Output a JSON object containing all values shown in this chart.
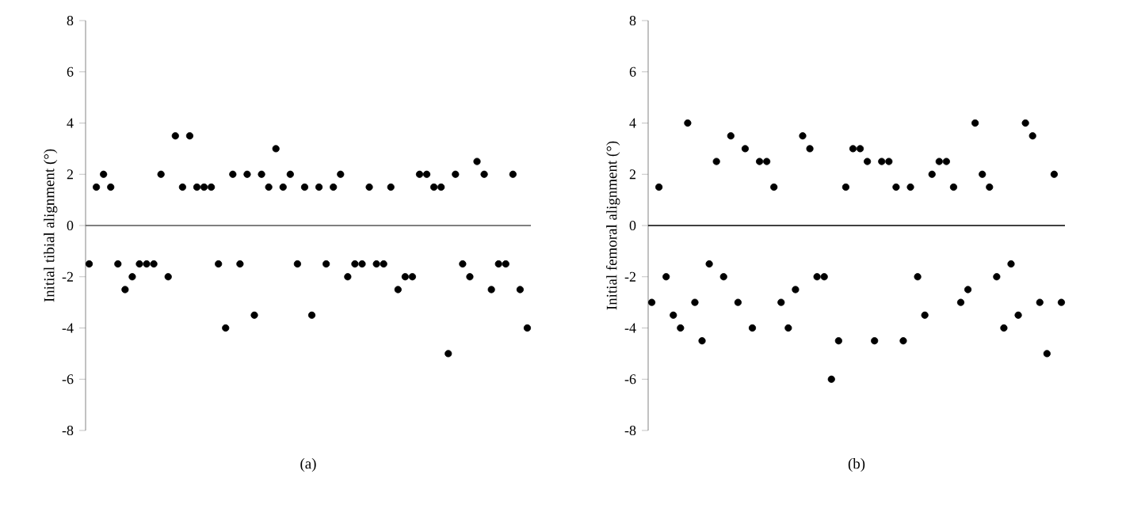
{
  "chart_data": [
    {
      "type": "scatter",
      "xlabel": "(a)",
      "ylabel": "Initial tibial alignment (°)",
      "tick_labels": "y",
      "categories": [
        null,
        null,
        null,
        null,
        null,
        null,
        null,
        null,
        null,
        null,
        null,
        null,
        null,
        null,
        null,
        null,
        null,
        null,
        null,
        null,
        null,
        null,
        null,
        null,
        null,
        null,
        null,
        null,
        null,
        null,
        null,
        null,
        null,
        null,
        null,
        null,
        null,
        null,
        null,
        null,
        null,
        null,
        null,
        null,
        null,
        null,
        null,
        null,
        null,
        null,
        null,
        null,
        null,
        null,
        null,
        null,
        null,
        null,
        null,
        null,
        null,
        null
      ],
      "series": [
        {
          "color": "#000000",
          "values": [
            -1.5,
            1.5,
            2,
            1.5,
            -1.5,
            -2.5,
            -2,
            -1.5,
            -1.5,
            -1.5,
            2,
            -2,
            3.5,
            1.5,
            3.5,
            1.5,
            1.5,
            1.5,
            -1.5,
            -4,
            2,
            -1.5,
            2,
            -3.5,
            2,
            1.5,
            3,
            1.5,
            2,
            -1.5,
            1.5,
            -3.5,
            1.5,
            -1.5,
            1.5,
            2,
            -2,
            -1.5,
            -1.5,
            1.5,
            -1.5,
            -1.5,
            1.5,
            -2.5,
            -2,
            -2,
            2,
            2,
            1.5,
            1.5,
            -5,
            2,
            -1.5,
            -2,
            2.5,
            2,
            -2.5,
            -1.5,
            -1.5,
            2,
            -2.5,
            -4
          ]
        }
      ],
      "ylim": [
        -8,
        8
      ],
      "yticks": [
        -8,
        -6,
        -4,
        -2,
        0,
        2,
        4,
        6,
        8
      ],
      "ref_lines": [
        {
          "axis": "y",
          "value": 0,
          "color": "#555555"
        }
      ]
    },
    {
      "type": "scatter",
      "xlabel": "(b)",
      "ylabel": "Initial femoral alignment (°)",
      "tick_labels": "y",
      "categories": [
        null,
        null,
        null,
        null,
        null,
        null,
        null,
        null,
        null,
        null,
        null,
        null,
        null,
        null,
        null,
        null,
        null,
        null,
        null,
        null,
        null,
        null,
        null,
        null,
        null,
        null,
        null,
        null,
        null,
        null,
        null,
        null,
        null,
        null,
        null,
        null,
        null,
        null,
        null,
        null,
        null,
        null,
        null,
        null,
        null,
        null,
        null,
        null,
        null,
        null,
        null,
        null,
        null,
        null,
        null,
        null,
        null,
        null
      ],
      "series": [
        {
          "color": "#000000",
          "values": [
            -3,
            1.5,
            -2,
            -3.5,
            -4,
            4,
            -3,
            -4.5,
            -1.5,
            2.5,
            -2,
            3.5,
            -3,
            3,
            -4,
            2.5,
            2.5,
            1.5,
            -3,
            -4,
            -2.5,
            3.5,
            3,
            -2,
            -2,
            -6,
            -4.5,
            1.5,
            3,
            3,
            2.5,
            -4.5,
            2.5,
            2.5,
            1.5,
            -4.5,
            1.5,
            -2,
            -3.5,
            2,
            2.5,
            2.5,
            1.5,
            -3,
            -2.5,
            4,
            2,
            1.5,
            -2,
            -4,
            -1.5,
            -3.5,
            4,
            3.5,
            -3,
            -5,
            2,
            -3
          ]
        }
      ],
      "ylim": [
        -8,
        8
      ],
      "yticks": [
        -8,
        -6,
        -4,
        -2,
        0,
        2,
        4,
        6,
        8
      ],
      "ref_lines": [
        {
          "axis": "y",
          "value": 0,
          "color": "#000000"
        }
      ]
    }
  ]
}
